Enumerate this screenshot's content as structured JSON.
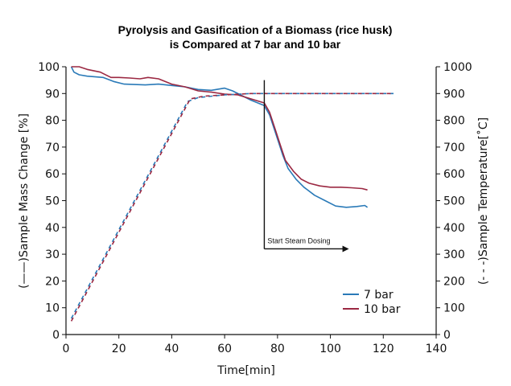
{
  "chart_data": {
    "type": "line",
    "title_line1": "Pyrolysis and Gasification of a Biomass (rice husk)",
    "title_line2": "is Compared at 7 bar and 10 bar",
    "xlabel": "Time[min]",
    "ylabel_left": "(——)Sample Mass Change [%]",
    "ylabel_right": "(- - -)Sample Temperature[˚C]",
    "xlim": [
      0,
      140
    ],
    "ylim_left": [
      0,
      100
    ],
    "ylim_right": [
      0,
      1000
    ],
    "x_ticks": [
      "0",
      "20",
      "40",
      "60",
      "80",
      "100",
      "120",
      "140"
    ],
    "y_left_ticks": [
      "0",
      "10",
      "20",
      "30",
      "40",
      "50",
      "60",
      "70",
      "80",
      "90",
      "100"
    ],
    "y_right_ticks": [
      "0",
      "100",
      "200",
      "300",
      "400",
      "500",
      "600",
      "700",
      "800",
      "900",
      "1000"
    ],
    "grid": false,
    "legend_position": "bottom-right",
    "colors": {
      "7 bar": "#2a7ab8",
      "10 bar": "#9b2842"
    },
    "series": [
      {
        "name": "7 bar",
        "axis": "left",
        "style": "solid",
        "points": [
          [
            2,
            100
          ],
          [
            3,
            98
          ],
          [
            5,
            97
          ],
          [
            8,
            96.5
          ],
          [
            14,
            96
          ],
          [
            18,
            94.5
          ],
          [
            22,
            93.5
          ],
          [
            30,
            93.2
          ],
          [
            35,
            93.5
          ],
          [
            40,
            93
          ],
          [
            45,
            92.5
          ],
          [
            50,
            91.5
          ],
          [
            55,
            91.2
          ],
          [
            60,
            92
          ],
          [
            63,
            91
          ],
          [
            67,
            89
          ],
          [
            70,
            87.5
          ],
          [
            75,
            85.5
          ],
          [
            77,
            82
          ],
          [
            79,
            76
          ],
          [
            82,
            67
          ],
          [
            84,
            62
          ],
          [
            87,
            58
          ],
          [
            90,
            55
          ],
          [
            94,
            52
          ],
          [
            98,
            50
          ],
          [
            102,
            48
          ],
          [
            106,
            47.5
          ],
          [
            110,
            47.8
          ],
          [
            113,
            48.2
          ],
          [
            114,
            47.5
          ]
        ]
      },
      {
        "name": "10 bar",
        "axis": "left",
        "style": "solid",
        "points": [
          [
            2,
            100
          ],
          [
            5,
            100
          ],
          [
            8,
            99
          ],
          [
            13,
            98
          ],
          [
            17,
            96
          ],
          [
            20,
            96
          ],
          [
            24,
            95.8
          ],
          [
            28,
            95.5
          ],
          [
            31,
            96
          ],
          [
            35,
            95.5
          ],
          [
            40,
            93.5
          ],
          [
            45,
            92.5
          ],
          [
            50,
            91
          ],
          [
            55,
            90.5
          ],
          [
            60,
            89.8
          ],
          [
            65,
            89.5
          ],
          [
            70,
            88
          ],
          [
            75,
            86.5
          ],
          [
            77,
            83
          ],
          [
            79,
            77
          ],
          [
            81,
            71
          ],
          [
            83,
            65
          ],
          [
            86,
            61
          ],
          [
            89,
            58
          ],
          [
            92,
            56.5
          ],
          [
            96,
            55.5
          ],
          [
            100,
            55
          ],
          [
            104,
            55
          ],
          [
            108,
            54.8
          ],
          [
            112,
            54.5
          ],
          [
            114,
            54
          ]
        ]
      },
      {
        "name": "7 bar",
        "axis": "right",
        "style": "dashed",
        "points": [
          [
            2,
            60
          ],
          [
            46,
            870
          ],
          [
            50,
            885
          ],
          [
            60,
            895
          ],
          [
            70,
            900
          ],
          [
            80,
            900
          ],
          [
            124,
            900
          ]
        ]
      },
      {
        "name": "10 bar",
        "axis": "right",
        "style": "dashed",
        "points": [
          [
            2,
            50
          ],
          [
            47,
            880
          ],
          [
            52,
            890
          ],
          [
            60,
            895
          ],
          [
            70,
            900
          ],
          [
            80,
            900
          ],
          [
            124,
            900
          ]
        ]
      }
    ],
    "annotation": {
      "text": "Start Steam Dosing",
      "x_start": 75,
      "x_end": 107,
      "y_top": 95,
      "y_arrow": 32
    }
  }
}
